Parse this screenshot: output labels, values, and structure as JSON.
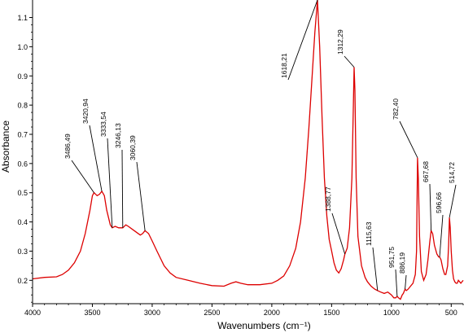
{
  "chart_data": {
    "type": "line",
    "title": "",
    "xlabel": "Wavenumbers (cm⁻¹)",
    "ylabel": "Absorbance",
    "x_reversed": true,
    "xlim": [
      4000,
      400
    ],
    "ylim": [
      0.12,
      1.16
    ],
    "x_ticks": [
      4000,
      3500,
      3000,
      2500,
      2000,
      1500,
      1000,
      500
    ],
    "x_tick_labels": [
      "4000",
      "3500",
      "3000",
      "2500",
      "2000",
      "1500",
      "1000",
      "500"
    ],
    "y_ticks": [
      0.2,
      0.3,
      0.4,
      0.5,
      0.6,
      0.7,
      0.8,
      0.9,
      1.0,
      1.1
    ],
    "y_tick_labels": [
      "0.2",
      "0.3",
      "0.4",
      "0.5",
      "0.6",
      "0.7",
      "0.8",
      "0.9",
      "1.0",
      "1.1"
    ],
    "grid": false,
    "series": [
      {
        "color": "#dd0000",
        "x": [
          4000,
          3900,
          3800,
          3750,
          3700,
          3650,
          3600,
          3560,
          3520,
          3500,
          3486,
          3460,
          3440,
          3421,
          3400,
          3380,
          3350,
          3334,
          3310,
          3280,
          3246,
          3220,
          3200,
          3150,
          3100,
          3080,
          3060,
          3030,
          3000,
          2960,
          2930,
          2900,
          2850,
          2800,
          2700,
          2600,
          2500,
          2400,
          2340,
          2300,
          2260,
          2200,
          2100,
          2000,
          1950,
          1900,
          1850,
          1800,
          1760,
          1720,
          1690,
          1660,
          1640,
          1618,
          1600,
          1580,
          1560,
          1540,
          1520,
          1500,
          1480,
          1460,
          1440,
          1420,
          1400,
          1389,
          1370,
          1350,
          1330,
          1318,
          1312,
          1305,
          1295,
          1280,
          1250,
          1220,
          1200,
          1170,
          1140,
          1116,
          1090,
          1060,
          1030,
          1000,
          980,
          965,
          952,
          940,
          925,
          910,
          900,
          886,
          875,
          860,
          840,
          820,
          800,
          790,
          782,
          775,
          765,
          750,
          730,
          710,
          695,
          680,
          668,
          655,
          640,
          620,
          605,
          597,
          585,
          570,
          555,
          545,
          530,
          522,
          515,
          508,
          500,
          490,
          480,
          470,
          460,
          450,
          440,
          430,
          420,
          410,
          400
        ],
        "y": [
          0.205,
          0.21,
          0.212,
          0.22,
          0.235,
          0.26,
          0.3,
          0.36,
          0.44,
          0.49,
          0.5,
          0.49,
          0.495,
          0.505,
          0.49,
          0.44,
          0.39,
          0.38,
          0.385,
          0.38,
          0.38,
          0.39,
          0.385,
          0.37,
          0.355,
          0.36,
          0.37,
          0.36,
          0.335,
          0.3,
          0.275,
          0.25,
          0.225,
          0.21,
          0.2,
          0.19,
          0.182,
          0.18,
          0.19,
          0.195,
          0.19,
          0.185,
          0.185,
          0.19,
          0.2,
          0.215,
          0.25,
          0.31,
          0.4,
          0.55,
          0.72,
          0.92,
          1.05,
          1.16,
          1.0,
          0.76,
          0.55,
          0.42,
          0.34,
          0.3,
          0.26,
          0.235,
          0.225,
          0.24,
          0.27,
          0.29,
          0.31,
          0.38,
          0.55,
          0.8,
          0.93,
          0.85,
          0.55,
          0.35,
          0.25,
          0.21,
          0.195,
          0.18,
          0.17,
          0.165,
          0.16,
          0.155,
          0.16,
          0.15,
          0.14,
          0.14,
          0.145,
          0.14,
          0.135,
          0.15,
          0.155,
          0.17,
          0.165,
          0.17,
          0.18,
          0.19,
          0.22,
          0.3,
          0.62,
          0.55,
          0.35,
          0.23,
          0.2,
          0.22,
          0.27,
          0.33,
          0.37,
          0.36,
          0.32,
          0.29,
          0.28,
          0.28,
          0.27,
          0.24,
          0.22,
          0.22,
          0.25,
          0.32,
          0.415,
          0.38,
          0.3,
          0.235,
          0.205,
          0.195,
          0.19,
          0.19,
          0.2,
          0.195,
          0.19,
          0.195,
          0.2
        ]
      }
    ],
    "annotations": [
      {
        "label": "3486,49",
        "x": 3486,
        "y": 0.5
      },
      {
        "label": "3420,94",
        "x": 3421,
        "y": 0.505
      },
      {
        "label": "3333,54",
        "x": 3334,
        "y": 0.38
      },
      {
        "label": "3246,13",
        "x": 3246,
        "y": 0.38
      },
      {
        "label": "3060,39",
        "x": 3060,
        "y": 0.37
      },
      {
        "label": "1618,21",
        "x": 1618,
        "y": 1.16
      },
      {
        "label": "1312,29",
        "x": 1312,
        "y": 0.93
      },
      {
        "label": "1388,77",
        "x": 1389,
        "y": 0.29
      },
      {
        "label": "1115,63",
        "x": 1116,
        "y": 0.165
      },
      {
        "label": "951,75",
        "x": 952,
        "y": 0.145
      },
      {
        "label": "886,19",
        "x": 886,
        "y": 0.17
      },
      {
        "label": "782,40",
        "x": 782,
        "y": 0.62
      },
      {
        "label": "667,68",
        "x": 668,
        "y": 0.37
      },
      {
        "label": "596,66",
        "x": 597,
        "y": 0.28
      },
      {
        "label": "514,72",
        "x": 515,
        "y": 0.415
      }
    ]
  }
}
